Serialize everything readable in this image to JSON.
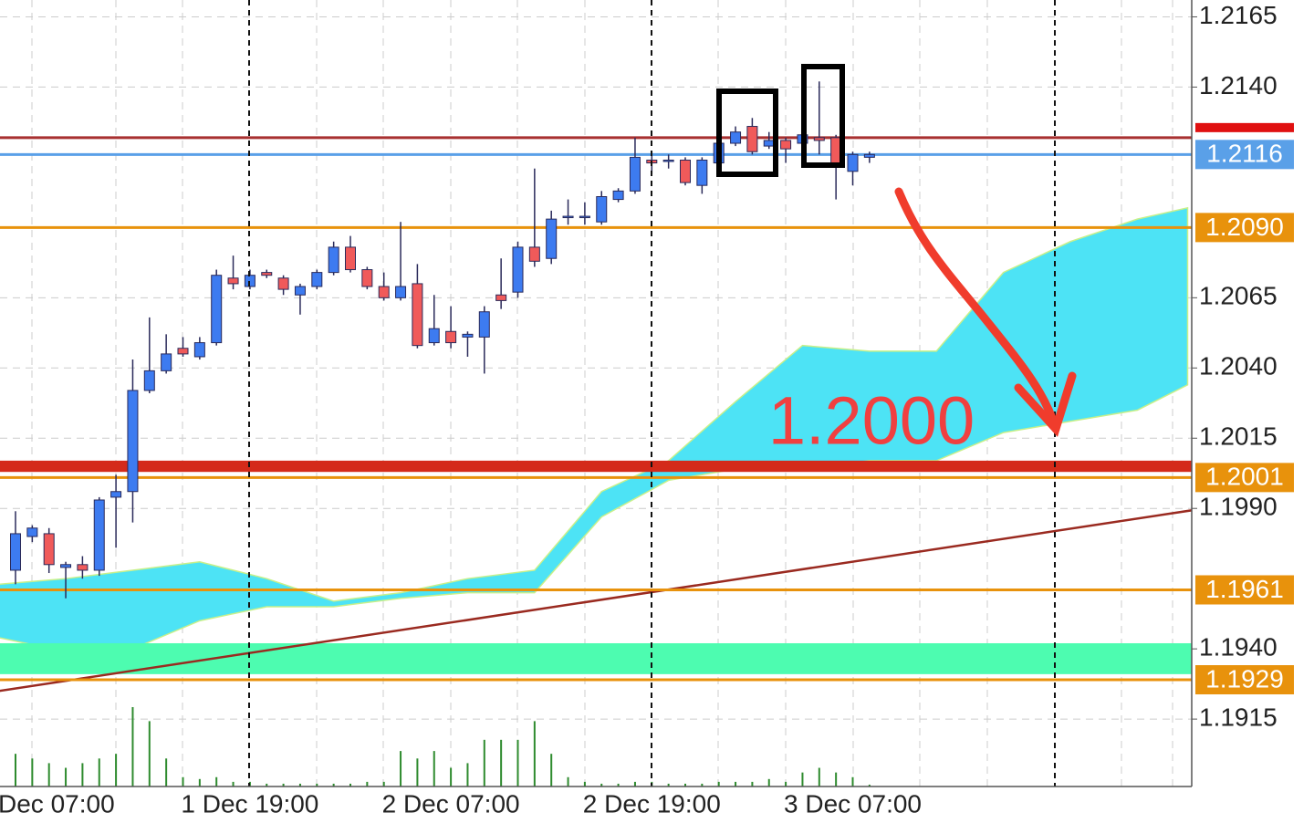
{
  "chart_data": {
    "type": "candlestick",
    "categories": [
      null,
      null,
      "Dec 07:00",
      null,
      null,
      null,
      null,
      null,
      null,
      null,
      null,
      null,
      null,
      null,
      "1 Dec 19:00",
      null,
      null,
      null,
      null,
      null,
      null,
      null,
      null,
      null,
      null,
      null,
      "2 Dec 07:00",
      null,
      null,
      null,
      null,
      null,
      null,
      null,
      null,
      null,
      null,
      null,
      "2 Dec 19:00",
      null,
      null,
      null,
      null,
      null,
      null,
      null,
      null,
      null,
      null,
      null,
      "3 Dec 07:00",
      null
    ],
    "open": [
      1.1968,
      1.198,
      1.1981,
      1.1969,
      1.197,
      1.1968,
      1.1994,
      1.1996,
      1.2032,
      1.2039,
      1.2047,
      1.2044,
      1.2049,
      1.2072,
      1.2069,
      1.2074,
      1.2072,
      1.2066,
      1.2069,
      1.2074,
      1.2083,
      1.2075,
      1.2069,
      1.2065,
      1.207,
      1.2049,
      1.2053,
      1.2051,
      1.2051,
      1.2066,
      1.2067,
      1.2083,
      1.2079,
      1.2094,
      1.2094,
      1.2092,
      1.21,
      1.2103,
      1.2114,
      1.2114,
      1.2114,
      1.2105,
      1.2113,
      1.212,
      1.2126,
      1.2119,
      1.2121,
      1.212,
      1.2122,
      1.2122,
      1.211,
      1.2115
    ],
    "high": [
      1.1989,
      1.1984,
      1.1983,
      1.1971,
      1.1973,
      1.1994,
      1.2002,
      1.2043,
      1.2058,
      1.2052,
      1.2051,
      1.2051,
      1.2075,
      1.208,
      1.2075,
      1.2075,
      1.2073,
      1.207,
      1.2075,
      1.2085,
      1.2087,
      1.2076,
      1.2074,
      1.2092,
      1.2077,
      1.2066,
      1.2062,
      1.2053,
      1.2062,
      1.2079,
      1.2085,
      1.2111,
      1.2096,
      1.21,
      1.2099,
      1.2103,
      1.2104,
      1.2122,
      1.2117,
      1.2116,
      1.2115,
      1.2115,
      1.2122,
      1.2126,
      1.2129,
      1.2124,
      1.2122,
      1.2126,
      1.2142,
      1.2123,
      1.2117,
      1.2117
    ],
    "low": [
      1.1963,
      1.1978,
      1.1967,
      1.1958,
      1.1965,
      1.1966,
      1.1976,
      1.1985,
      1.2031,
      1.2038,
      1.2044,
      1.2043,
      1.2048,
      1.2068,
      1.2068,
      1.2072,
      1.2066,
      1.2059,
      1.2068,
      1.2073,
      1.2074,
      1.2068,
      1.2064,
      1.2064,
      1.2047,
      1.2048,
      1.2047,
      1.2044,
      1.2038,
      1.2061,
      1.2065,
      1.2076,
      1.2077,
      1.2091,
      1.2091,
      1.2091,
      1.2099,
      1.2102,
      1.2109,
      1.2111,
      1.2105,
      1.2102,
      1.2112,
      1.2119,
      1.2116,
      1.2118,
      1.2113,
      1.2118,
      1.2116,
      1.21,
      1.2105,
      1.2113
    ],
    "close": [
      1.1981,
      1.1983,
      1.197,
      1.197,
      1.1968,
      1.1993,
      1.1996,
      1.2032,
      1.2039,
      1.2045,
      1.2045,
      1.2049,
      1.2073,
      1.207,
      1.2073,
      1.2073,
      1.2068,
      1.2069,
      1.2074,
      1.2083,
      1.2075,
      1.2069,
      1.2065,
      1.2069,
      1.2048,
      1.2054,
      1.2049,
      1.2052,
      1.206,
      1.2064,
      1.2083,
      1.2078,
      1.2093,
      1.2094,
      1.2094,
      1.2101,
      1.2103,
      1.2115,
      1.2113,
      1.2114,
      1.2106,
      1.2114,
      1.212,
      1.2124,
      1.2117,
      1.2121,
      1.2118,
      1.2123,
      1.2121,
      1.2113,
      1.2116,
      1.2116
    ],
    "up_color": "#3d7bf0",
    "down_color": "#f05a5a",
    "volume": [
      35,
      30,
      25,
      20,
      25,
      30,
      35,
      85,
      70,
      30,
      10,
      8,
      10,
      5,
      5,
      3,
      3,
      3,
      3,
      3,
      3,
      5,
      5,
      38,
      30,
      38,
      20,
      25,
      50,
      50,
      50,
      70,
      35,
      10,
      5,
      3,
      3,
      5,
      5,
      3,
      3,
      3,
      5,
      5,
      5,
      8,
      5,
      15,
      20,
      15,
      10,
      2
    ],
    "volume_color": "#2e8b2e",
    "cloud": {
      "x": [
        -1,
        3,
        7,
        11,
        15,
        19,
        23,
        27,
        31,
        35,
        39,
        43,
        47,
        51,
        55,
        59,
        63,
        67,
        70
      ],
      "upper": [
        1.1963,
        1.1965,
        1.1968,
        1.1971,
        1.1965,
        1.1957,
        1.196,
        1.1965,
        1.1968,
        1.1996,
        1.2007,
        1.2028,
        1.2048,
        1.2046,
        1.2046,
        1.2074,
        1.2085,
        1.2093,
        1.2097
      ],
      "lower": [
        1.1944,
        1.1939,
        1.194,
        1.195,
        1.1955,
        1.1955,
        1.1958,
        1.196,
        1.196,
        1.1987,
        1.2,
        1.2004,
        1.2004,
        1.2007,
        1.2007,
        1.2017,
        1.2021,
        1.2025,
        1.2034
      ],
      "color": "#4de3f5"
    },
    "trendline": {
      "x": [
        -1,
        71
      ],
      "y": [
        1.1925,
        1.199
      ],
      "color": "#9a2a20"
    },
    "zones": [
      {
        "range": [
          1.2003,
          1.2007
        ],
        "color": "#d42a1a"
      },
      {
        "range": [
          1.1931,
          1.1942
        ],
        "color": "#4dfcb0"
      }
    ],
    "levels": [
      {
        "value": 1.2122,
        "color": "#a83030"
      },
      {
        "value": 1.2116,
        "color": "#5aa0e8"
      },
      {
        "value": 1.209,
        "label": "1.2090",
        "color": "#e8920c"
      },
      {
        "value": 1.2001,
        "color": "#e8920c"
      },
      {
        "value": 1.1961,
        "color": "#e8920c"
      },
      {
        "value": 1.1929,
        "color": "#e8920c"
      }
    ],
    "annotation": "1.2000",
    "ylim": [
      1.1891,
      1.2171
    ],
    "yticks": [
      1.2165,
      {
        "value": 1.214,
        "label": "1.2140"
      },
      1.2065,
      {
        "value": 1.204,
        "label": "1.2040"
      },
      1.2015,
      {
        "value": 1.199,
        "label": "1.1990"
      },
      {
        "value": 1.194,
        "label": "1.1940"
      },
      1.1915
    ],
    "grid": true
  }
}
